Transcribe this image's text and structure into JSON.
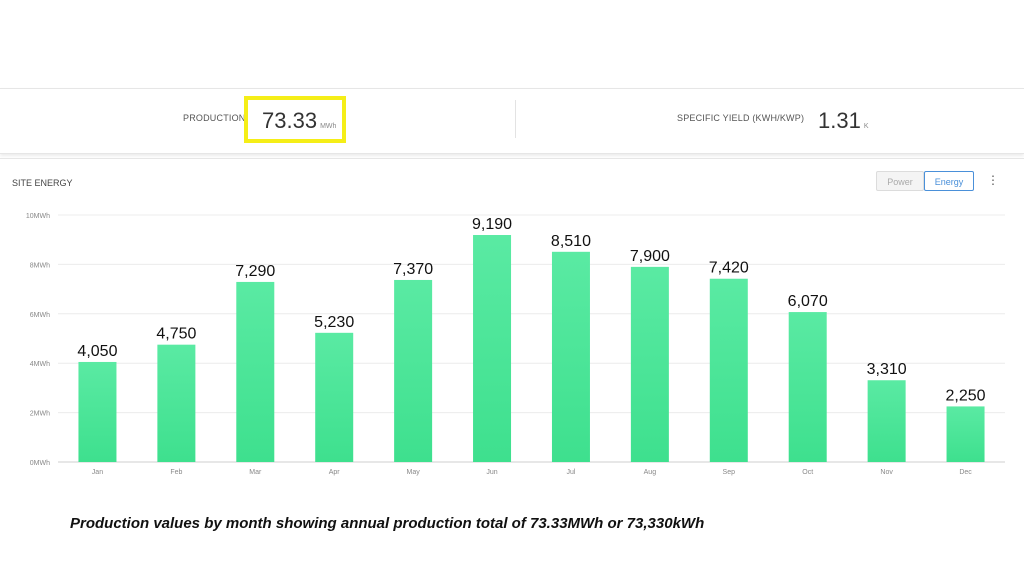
{
  "kpis": {
    "production": {
      "label": "PRODUCTION",
      "value": "73.33",
      "unit": "MWh"
    },
    "specific_yield": {
      "label": "SPECIFIC YIELD (KWH/KWP)",
      "value": "1.31",
      "unit": "K"
    }
  },
  "panel": {
    "title": "SITE ENERGY",
    "buttons": {
      "power": "Power",
      "energy": "Energy"
    },
    "menu_icon": "kebab-menu-icon"
  },
  "colors": {
    "bar": "#3ee08e",
    "bar_top": "#5aeaa3",
    "highlight": "#f5ee17",
    "active_button": "#4a90d9"
  },
  "chart_data": {
    "type": "bar",
    "title": "",
    "xlabel": "",
    "ylabel": "",
    "categories": [
      "Jan",
      "Feb",
      "Mar",
      "Apr",
      "May",
      "Jun",
      "Jul",
      "Aug",
      "Sep",
      "Oct",
      "Nov",
      "Dec"
    ],
    "values": [
      4050,
      4750,
      7290,
      5230,
      7370,
      9190,
      8510,
      7900,
      7420,
      6070,
      3310,
      2250
    ],
    "data_labels": [
      "4,050",
      "4,750",
      "7,290",
      "5,230",
      "7,370",
      "9,190",
      "8,510",
      "7,900",
      "7,420",
      "6,070",
      "3,310",
      "2,250"
    ],
    "yticks": [
      0,
      2000,
      4000,
      6000,
      8000,
      10000
    ],
    "ytick_labels": [
      "0MWh",
      "2MWh",
      "4MWh",
      "6MWh",
      "8MWh",
      "10MWh"
    ],
    "ylim": [
      0,
      10000
    ],
    "grid": true,
    "legend": "none"
  },
  "caption": "Production values by month showing annual production total of 73.33MWh or 73,330kWh"
}
